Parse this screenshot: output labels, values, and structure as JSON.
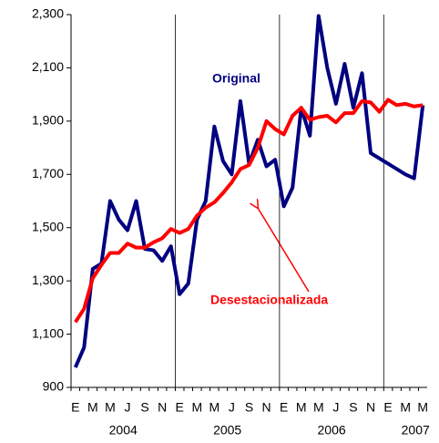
{
  "chart_data": {
    "type": "line",
    "categories": [
      "E",
      null,
      "M",
      null,
      "M",
      null,
      "J",
      null,
      "S",
      null,
      "N",
      null,
      "E",
      null,
      "M",
      null,
      "M",
      null,
      "J",
      null,
      "S",
      null,
      "N",
      null,
      "E",
      null,
      "M",
      null,
      "M",
      null,
      "J",
      null,
      "S",
      null,
      "N",
      null,
      "E",
      null,
      "M",
      null,
      "M"
    ],
    "year_groups": [
      "2004",
      "2005",
      "2006",
      "2007"
    ],
    "series": [
      {
        "name": "Original",
        "color": "#000080",
        "values": [
          975,
          1050,
          1345,
          1365,
          1600,
          1530,
          1490,
          1600,
          1420,
          1415,
          1375,
          1430,
          1250,
          1290,
          1530,
          1600,
          1880,
          1750,
          1700,
          1975,
          1740,
          1830,
          1730,
          1755,
          1580,
          1650,
          1950,
          1845,
          2295,
          2100,
          1965,
          2115,
          1950,
          2080,
          1780,
          1760,
          1740,
          1720,
          1700,
          1685,
          1960
        ]
      },
      {
        "name": "Desestacionalizada",
        "color": "#ff0000",
        "values": [
          1145,
          1195,
          1310,
          1360,
          1405,
          1405,
          1440,
          1425,
          1425,
          1445,
          1460,
          1495,
          1480,
          1495,
          1545,
          1575,
          1595,
          1630,
          1670,
          1720,
          1735,
          1800,
          1900,
          1870,
          1850,
          1920,
          1950,
          1905,
          1915,
          1920,
          1895,
          1930,
          1930,
          1975,
          1970,
          1935,
          1980,
          1960,
          1965,
          1955,
          1960
        ]
      }
    ],
    "ylim": [
      900,
      2300
    ],
    "yticks": [
      900,
      {
        "value": 1100,
        "label": "1,100"
      },
      {
        "value": 1300,
        "label": "1,300"
      },
      {
        "value": 1500,
        "label": "1,500"
      },
      {
        "value": 1700,
        "label": "1,700"
      },
      {
        "value": 1900,
        "label": "1,900"
      },
      {
        "value": 2100,
        "label": "2,100"
      },
      {
        "value": 2300,
        "label": "2,300"
      }
    ]
  }
}
